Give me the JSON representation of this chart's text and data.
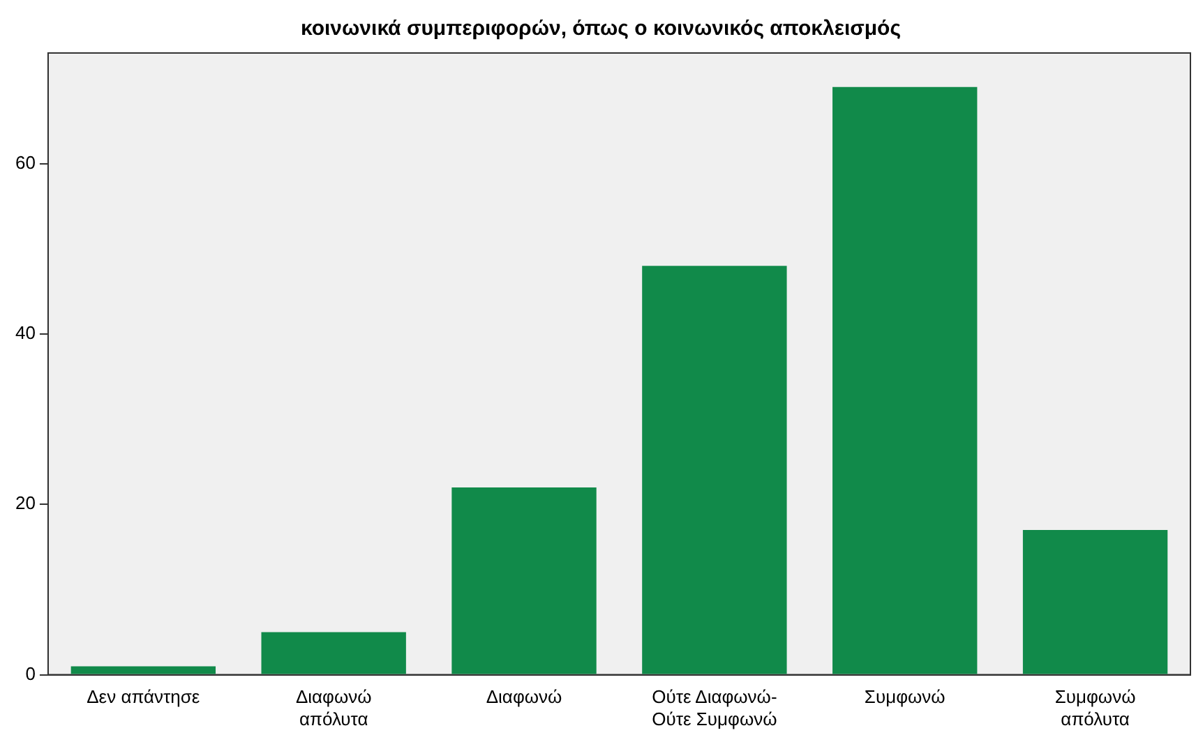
{
  "chart_data": {
    "type": "bar",
    "title": "κοινωνικά συμπεριφορών, όπως ο κοινωνικός αποκλεισμός",
    "categories": [
      "Δεν απάντησε",
      "Διαφωνώ απόλυτα",
      "Διαφωνώ",
      "Ούτε Διαφωνώ- Ούτε Συμφωνώ",
      "Συμφωνώ",
      "Συμφωνώ απόλυτα"
    ],
    "values": [
      1,
      5,
      22,
      48,
      69,
      17
    ],
    "color": "#118a4a",
    "ylim": [
      0,
      73
    ],
    "yticks": [
      0,
      20,
      40,
      60
    ],
    "grid": false,
    "legend": false
  }
}
